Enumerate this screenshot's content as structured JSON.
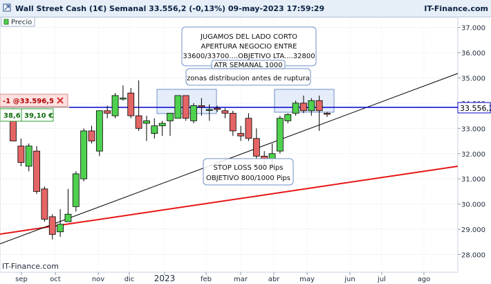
{
  "header": {
    "title": "Wall Street Cash (1€) Semanal 33.556,2 (-0,13%) 09-may-2023 17:59:29",
    "brand": "IT-Finance.com",
    "legend_label": "Precio"
  },
  "position_box": {
    "line1": "-1 @33.596,5",
    "left_value": "38,6",
    "right_value": "39,10 €"
  },
  "footer": {
    "watermark": "IT-Finance.com",
    "year": "2023"
  },
  "annotations": {
    "box1": [
      "JUGAMOS DEL LADO CORTO",
      "APERTURA NEGOCIO ENTRE",
      "33600/33700....OBJETIVO LTA....32800",
      "ATR SEMANAL 1000"
    ],
    "box2": [
      "zonas distribucion antes de ruptura"
    ],
    "box3": [
      "STOP LOSS 500 Pips",
      "OBJETIVO 800/1000 Pips"
    ]
  },
  "colors": {
    "up": "#4fd14f",
    "down": "#e46565",
    "current_line": "#0000cc",
    "red_trendline": "#e81414",
    "black_trendline": "#000000",
    "zone_fill": "#dce7f8",
    "zone_stroke": "#6f8fc8"
  },
  "chart_data": {
    "type": "candlestick",
    "instrument": "Wall Street Cash (1€)",
    "timeframe": "Semanal",
    "last_price": "33.556,2",
    "change": "-0,13%",
    "timestamp": "09-may-2023 17:59:29",
    "y_ticks": [
      "28.000",
      "29.000",
      "30.000",
      "31.000",
      "32.000",
      "33.000",
      "34.000",
      "35.000",
      "36.000",
      "37.000"
    ],
    "y_tick_values": [
      28000,
      29000,
      30000,
      31000,
      32000,
      33000,
      34000,
      35000,
      36000,
      37000
    ],
    "x_ticks": [
      "sep",
      "oct",
      "nov",
      "dic",
      "2023",
      "feb",
      "mar",
      "abr",
      "may",
      "jun",
      "jul",
      "ago"
    ],
    "ylim": [
      27300,
      37400
    ],
    "candles": [
      {
        "o": 33700,
        "h": 33800,
        "l": 32500,
        "c": 32500
      },
      {
        "o": 32300,
        "h": 32600,
        "l": 31500,
        "c": 31650
      },
      {
        "o": 31500,
        "h": 32400,
        "l": 31300,
        "c": 32300
      },
      {
        "o": 32100,
        "h": 32300,
        "l": 30400,
        "c": 30500
      },
      {
        "o": 30600,
        "h": 30700,
        "l": 29300,
        "c": 29400
      },
      {
        "o": 29500,
        "h": 29600,
        "l": 28600,
        "c": 28800
      },
      {
        "o": 28900,
        "h": 29800,
        "l": 28700,
        "c": 29200
      },
      {
        "o": 29300,
        "h": 30600,
        "l": 29300,
        "c": 29600
      },
      {
        "o": 29900,
        "h": 31300,
        "l": 29700,
        "c": 31200
      },
      {
        "o": 31000,
        "h": 33000,
        "l": 30900,
        "c": 32900
      },
      {
        "o": 32900,
        "h": 33100,
        "l": 32400,
        "c": 32500
      },
      {
        "o": 32100,
        "h": 33700,
        "l": 31900,
        "c": 33700
      },
      {
        "o": 33700,
        "h": 33900,
        "l": 33400,
        "c": 33600
      },
      {
        "o": 33500,
        "h": 34400,
        "l": 33400,
        "c": 34300
      },
      {
        "o": 34200,
        "h": 34700,
        "l": 34100,
        "c": 34200
      },
      {
        "o": 34400,
        "h": 34600,
        "l": 33400,
        "c": 33500
      },
      {
        "o": 33500,
        "h": 34900,
        "l": 32900,
        "c": 33000
      },
      {
        "o": 33200,
        "h": 33500,
        "l": 32500,
        "c": 33300
      },
      {
        "o": 32800,
        "h": 33400,
        "l": 32600,
        "c": 33100
      },
      {
        "o": 33100,
        "h": 33300,
        "l": 32700,
        "c": 33200
      },
      {
        "o": 33300,
        "h": 33600,
        "l": 32700,
        "c": 33600
      },
      {
        "o": 33400,
        "h": 34300,
        "l": 33400,
        "c": 34300
      },
      {
        "o": 34300,
        "h": 34300,
        "l": 33300,
        "c": 33400
      },
      {
        "o": 33300,
        "h": 34000,
        "l": 33200,
        "c": 33900
      },
      {
        "o": 33900,
        "h": 34200,
        "l": 33500,
        "c": 33850
      },
      {
        "o": 33750,
        "h": 33950,
        "l": 33300,
        "c": 33750
      },
      {
        "o": 33800,
        "h": 33900,
        "l": 33650,
        "c": 33750
      },
      {
        "o": 33700,
        "h": 33800,
        "l": 33400,
        "c": 33600
      },
      {
        "o": 33600,
        "h": 33700,
        "l": 32700,
        "c": 32900
      },
      {
        "o": 32800,
        "h": 33100,
        "l": 32500,
        "c": 32700
      },
      {
        "o": 33400,
        "h": 33600,
        "l": 32500,
        "c": 32600
      },
      {
        "o": 32600,
        "h": 33000,
        "l": 31800,
        "c": 31900
      },
      {
        "o": 31900,
        "h": 32100,
        "l": 31500,
        "c": 31800
      },
      {
        "o": 31800,
        "h": 32400,
        "l": 31400,
        "c": 32000
      },
      {
        "o": 32100,
        "h": 33500,
        "l": 32000,
        "c": 33400
      },
      {
        "o": 33300,
        "h": 33600,
        "l": 33200,
        "c": 33550
      },
      {
        "o": 33600,
        "h": 34100,
        "l": 33500,
        "c": 34000
      },
      {
        "o": 34000,
        "h": 34300,
        "l": 33600,
        "c": 33700
      },
      {
        "o": 33700,
        "h": 34200,
        "l": 33500,
        "c": 34100
      },
      {
        "o": 34100,
        "h": 34300,
        "l": 32900,
        "c": 33700
      },
      {
        "o": 33600,
        "h": 33650,
        "l": 33450,
        "c": 33556
      }
    ]
  }
}
